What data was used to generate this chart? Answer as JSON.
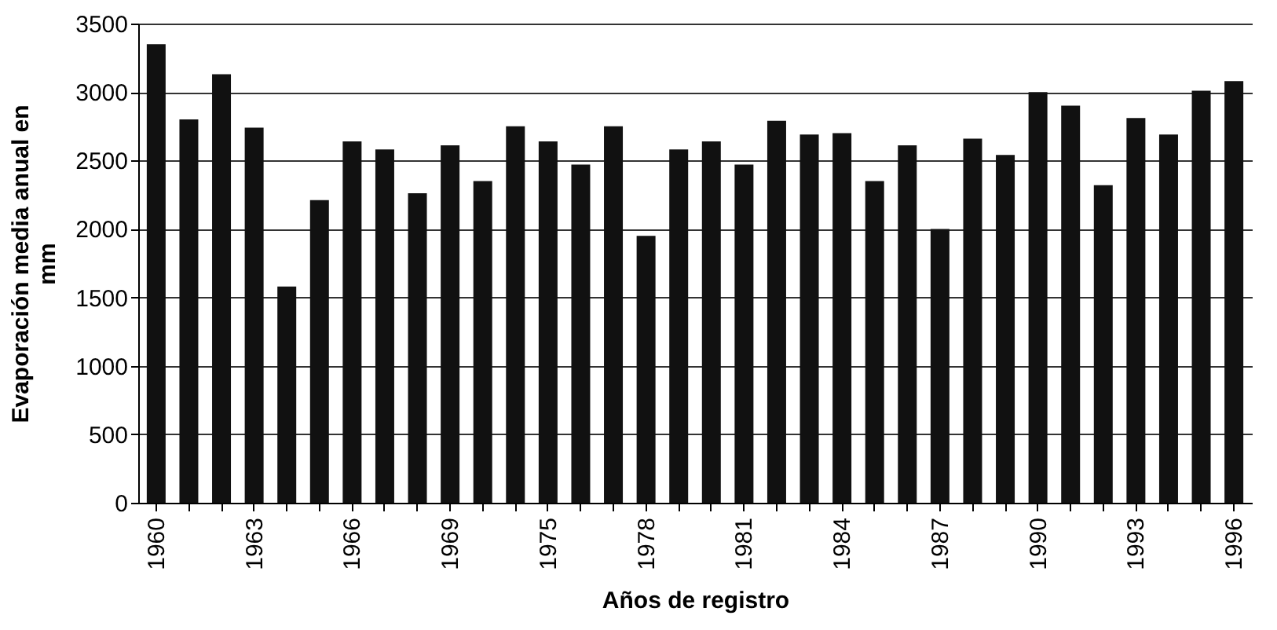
{
  "chart_data": {
    "type": "bar",
    "xlabel": "Años de registro",
    "ylabel": "Evaporación media anual en mm",
    "categories": [
      "1960",
      null,
      null,
      "1963",
      null,
      null,
      "1966",
      null,
      null,
      "1969",
      null,
      null,
      "1975",
      null,
      null,
      "1978",
      null,
      null,
      "1981",
      null,
      null,
      "1984",
      null,
      null,
      "1987",
      null,
      null,
      "1990",
      null,
      null,
      "1993",
      null,
      null,
      "1996"
    ],
    "values": [
      3350,
      2800,
      3130,
      2740,
      1580,
      2210,
      2640,
      2580,
      2260,
      2610,
      2350,
      2750,
      2640,
      2470,
      2750,
      1950,
      2580,
      2640,
      2470,
      2790,
      2690,
      2700,
      2350,
      2610,
      2000,
      2660,
      2540,
      3000,
      2900,
      2320,
      2810,
      2690,
      3010,
      3080
    ],
    "color": "#111111",
    "ylim": [
      0,
      3500
    ],
    "yticks": [
      0,
      500,
      1000,
      1500,
      2000,
      2500,
      3000,
      3500
    ],
    "grid": "y"
  }
}
